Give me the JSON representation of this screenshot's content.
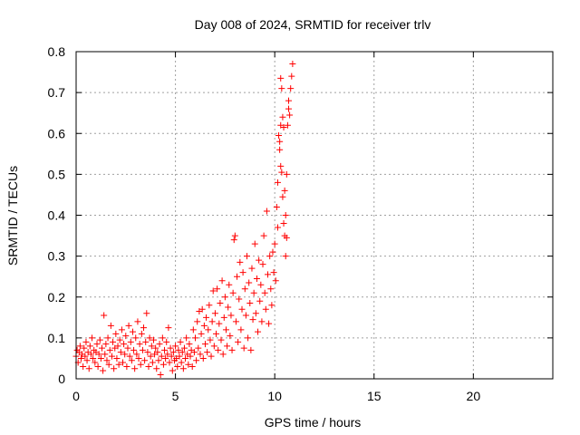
{
  "chart_data": {
    "type": "scatter",
    "title": "Day 008 of 2024, SRMTID for receiver trlv",
    "xlabel": "GPS time / hours",
    "ylabel": "SRMTID / TECUs",
    "xlim": [
      0,
      24
    ],
    "ylim": [
      0,
      0.8
    ],
    "xticks": [
      0,
      5,
      10,
      15,
      20
    ],
    "yticks": [
      0,
      0.1,
      0.2,
      0.3,
      0.4,
      0.5,
      0.6,
      0.7,
      0.8
    ],
    "xtick_labels": [
      "0",
      "5",
      "10",
      "15",
      "20"
    ],
    "ytick_labels": [
      "0",
      "0.1",
      "0.2",
      "0.3",
      "0.4",
      "0.5",
      "0.6",
      "0.7",
      "0.8"
    ],
    "grid": true,
    "marker": "+",
    "color": "#ff0000",
    "series": [
      {
        "name": "SRMTID",
        "points": [
          [
            0.0,
            0.055
          ],
          [
            0.05,
            0.07
          ],
          [
            0.1,
            0.04
          ],
          [
            0.15,
            0.065
          ],
          [
            0.2,
            0.08
          ],
          [
            0.25,
            0.05
          ],
          [
            0.3,
            0.06
          ],
          [
            0.35,
            0.03
          ],
          [
            0.4,
            0.075
          ],
          [
            0.45,
            0.055
          ],
          [
            0.5,
            0.09
          ],
          [
            0.55,
            0.045
          ],
          [
            0.6,
            0.065
          ],
          [
            0.65,
            0.025
          ],
          [
            0.7,
            0.08
          ],
          [
            0.75,
            0.06
          ],
          [
            0.8,
            0.1
          ],
          [
            0.85,
            0.05
          ],
          [
            0.9,
            0.07
          ],
          [
            0.95,
            0.04
          ],
          [
            1.0,
            0.065
          ],
          [
            1.05,
            0.085
          ],
          [
            1.1,
            0.03
          ],
          [
            1.15,
            0.06
          ],
          [
            1.2,
            0.095
          ],
          [
            1.25,
            0.05
          ],
          [
            1.3,
            0.075
          ],
          [
            1.35,
            0.02
          ],
          [
            1.4,
            0.155
          ],
          [
            1.45,
            0.06
          ],
          [
            1.5,
            0.085
          ],
          [
            1.55,
            0.045
          ],
          [
            1.6,
            0.1
          ],
          [
            1.65,
            0.035
          ],
          [
            1.7,
            0.07
          ],
          [
            1.75,
            0.13
          ],
          [
            1.8,
            0.055
          ],
          [
            1.85,
            0.09
          ],
          [
            1.9,
            0.025
          ],
          [
            1.95,
            0.075
          ],
          [
            2.0,
            0.11
          ],
          [
            2.05,
            0.05
          ],
          [
            2.1,
            0.08
          ],
          [
            2.15,
            0.035
          ],
          [
            2.2,
            0.095
          ],
          [
            2.25,
            0.065
          ],
          [
            2.3,
            0.12
          ],
          [
            2.35,
            0.04
          ],
          [
            2.4,
            0.085
          ],
          [
            2.45,
            0.06
          ],
          [
            2.5,
            0.105
          ],
          [
            2.55,
            0.03
          ],
          [
            2.6,
            0.075
          ],
          [
            2.65,
            0.13
          ],
          [
            2.7,
            0.055
          ],
          [
            2.75,
            0.09
          ],
          [
            2.8,
            0.045
          ],
          [
            2.85,
            0.115
          ],
          [
            2.9,
            0.07
          ],
          [
            2.95,
            0.025
          ],
          [
            3.0,
            0.1
          ],
          [
            3.05,
            0.06
          ],
          [
            3.1,
            0.14
          ],
          [
            3.15,
            0.05
          ],
          [
            3.2,
            0.085
          ],
          [
            3.25,
            0.035
          ],
          [
            3.3,
            0.11
          ],
          [
            3.35,
            0.07
          ],
          [
            3.4,
            0.125
          ],
          [
            3.45,
            0.045
          ],
          [
            3.5,
            0.09
          ],
          [
            3.55,
            0.16
          ],
          [
            3.6,
            0.065
          ],
          [
            3.65,
            0.03
          ],
          [
            3.7,
            0.1
          ],
          [
            3.75,
            0.055
          ],
          [
            3.8,
            0.08
          ],
          [
            3.85,
            0.04
          ],
          [
            3.9,
            0.095
          ],
          [
            3.95,
            0.06
          ],
          [
            4.0,
            0.075
          ],
          [
            4.05,
            0.025
          ],
          [
            4.1,
            0.065
          ],
          [
            4.15,
            0.045
          ],
          [
            4.2,
            0.085
          ],
          [
            4.25,
            0.01
          ],
          [
            4.3,
            0.055
          ],
          [
            4.35,
            0.1
          ],
          [
            4.4,
            0.035
          ],
          [
            4.45,
            0.07
          ],
          [
            4.5,
            0.05
          ],
          [
            4.55,
            0.09
          ],
          [
            4.6,
            0.06
          ],
          [
            4.65,
            0.125
          ],
          [
            4.7,
            0.04
          ],
          [
            4.75,
            0.075
          ],
          [
            4.8,
            0.055
          ],
          [
            4.85,
            0.02
          ],
          [
            4.9,
            0.065
          ],
          [
            4.95,
            0.045
          ],
          [
            5.0,
            0.08
          ],
          [
            5.05,
            0.05
          ],
          [
            5.1,
            0.03
          ],
          [
            5.15,
            0.07
          ],
          [
            5.2,
            0.055
          ],
          [
            5.25,
            0.09
          ],
          [
            5.3,
            0.04
          ],
          [
            5.35,
            0.065
          ],
          [
            5.4,
            0.025
          ],
          [
            5.45,
            0.075
          ],
          [
            5.5,
            0.05
          ],
          [
            5.55,
            0.1
          ],
          [
            5.6,
            0.06
          ],
          [
            5.65,
            0.035
          ],
          [
            5.7,
            0.085
          ],
          [
            5.75,
            0.055
          ],
          [
            5.8,
            0.07
          ],
          [
            5.85,
            0.03
          ],
          [
            5.9,
            0.12
          ],
          [
            5.95,
            0.065
          ],
          [
            6.0,
            0.1
          ],
          [
            6.05,
            0.045
          ],
          [
            6.1,
            0.14
          ],
          [
            6.15,
            0.075
          ],
          [
            6.2,
            0.165
          ],
          [
            6.25,
            0.06
          ],
          [
            6.3,
            0.11
          ],
          [
            6.35,
            0.17
          ],
          [
            6.4,
            0.05
          ],
          [
            6.45,
            0.13
          ],
          [
            6.5,
            0.085
          ],
          [
            6.55,
            0.15
          ],
          [
            6.6,
            0.065
          ],
          [
            6.65,
            0.12
          ],
          [
            6.7,
            0.18
          ],
          [
            6.75,
            0.095
          ],
          [
            6.8,
            0.055
          ],
          [
            6.85,
            0.14
          ],
          [
            6.9,
            0.215
          ],
          [
            6.95,
            0.08
          ],
          [
            7.0,
            0.16
          ],
          [
            7.05,
            0.11
          ],
          [
            7.1,
            0.22
          ],
          [
            7.15,
            0.07
          ],
          [
            7.2,
            0.135
          ],
          [
            7.25,
            0.185
          ],
          [
            7.3,
            0.095
          ],
          [
            7.35,
            0.24
          ],
          [
            7.4,
            0.06
          ],
          [
            7.45,
            0.15
          ],
          [
            7.5,
            0.2
          ],
          [
            7.55,
            0.12
          ],
          [
            7.6,
            0.08
          ],
          [
            7.65,
            0.175
          ],
          [
            7.7,
            0.23
          ],
          [
            7.75,
            0.105
          ],
          [
            7.8,
            0.155
          ],
          [
            7.85,
            0.07
          ],
          [
            7.9,
            0.21
          ],
          [
            7.95,
            0.34
          ],
          [
            8.0,
            0.35
          ],
          [
            8.05,
            0.14
          ],
          [
            8.1,
            0.25
          ],
          [
            8.15,
            0.09
          ],
          [
            8.2,
            0.195
          ],
          [
            8.25,
            0.285
          ],
          [
            8.3,
            0.12
          ],
          [
            8.35,
            0.17
          ],
          [
            8.4,
            0.26
          ],
          [
            8.45,
            0.075
          ],
          [
            8.5,
            0.22
          ],
          [
            8.55,
            0.155
          ],
          [
            8.6,
            0.3
          ],
          [
            8.65,
            0.1
          ],
          [
            8.7,
            0.235
          ],
          [
            8.75,
            0.185
          ],
          [
            8.8,
            0.07
          ],
          [
            8.85,
            0.27
          ],
          [
            8.9,
            0.145
          ],
          [
            8.95,
            0.21
          ],
          [
            9.0,
            0.33
          ],
          [
            9.05,
            0.16
          ],
          [
            9.1,
            0.245
          ],
          [
            9.15,
            0.115
          ],
          [
            9.2,
            0.29
          ],
          [
            9.25,
            0.19
          ],
          [
            9.3,
            0.23
          ],
          [
            9.35,
            0.14
          ],
          [
            9.4,
            0.28
          ],
          [
            9.45,
            0.35
          ],
          [
            9.5,
            0.21
          ],
          [
            9.55,
            0.17
          ],
          [
            9.6,
            0.41
          ],
          [
            9.65,
            0.255
          ],
          [
            9.7,
            0.135
          ],
          [
            9.75,
            0.3
          ],
          [
            9.8,
            0.22
          ],
          [
            9.85,
            0.18
          ],
          [
            9.9,
            0.31
          ],
          [
            9.95,
            0.26
          ],
          [
            10.0,
            0.33
          ],
          [
            10.05,
            0.24
          ],
          [
            10.1,
            0.42
          ],
          [
            10.15,
            0.48
          ],
          [
            10.2,
            0.595
          ],
          [
            10.25,
            0.56
          ],
          [
            10.3,
            0.52
          ],
          [
            10.35,
            0.505
          ],
          [
            10.4,
            0.445
          ],
          [
            10.45,
            0.38
          ],
          [
            10.5,
            0.35
          ],
          [
            10.55,
            0.3
          ],
          [
            10.6,
            0.5
          ],
          [
            10.65,
            0.62
          ],
          [
            10.7,
            0.68
          ],
          [
            10.75,
            0.645
          ],
          [
            10.8,
            0.71
          ],
          [
            10.85,
            0.74
          ],
          [
            10.9,
            0.77
          ],
          [
            10.3,
            0.735
          ],
          [
            10.35,
            0.71
          ],
          [
            10.4,
            0.64
          ],
          [
            10.45,
            0.615
          ],
          [
            10.25,
            0.58
          ],
          [
            10.5,
            0.46
          ],
          [
            10.55,
            0.4
          ],
          [
            10.6,
            0.345
          ],
          [
            10.15,
            0.37
          ],
          [
            10.3,
            0.62
          ],
          [
            10.7,
            0.66
          ]
        ]
      }
    ]
  }
}
